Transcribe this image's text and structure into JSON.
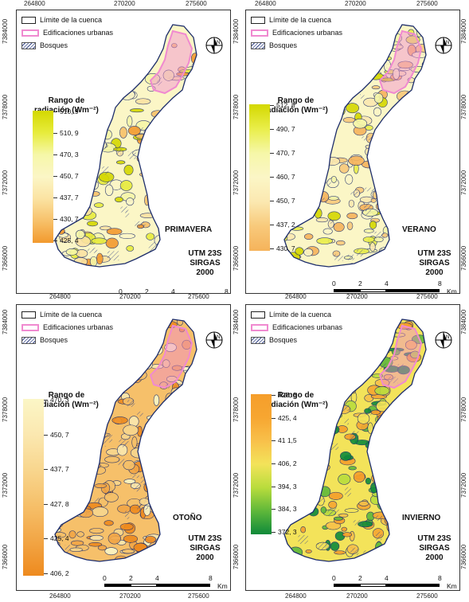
{
  "x_ticks": [
    "264800",
    "270200",
    "275600"
  ],
  "y_ticks": [
    "7384000",
    "7378000",
    "7372000",
    "7366000"
  ],
  "legend": {
    "basin": "Límite de la cuenca",
    "urban": "Edificaciones urbanas",
    "forest": "Bosques",
    "range_title_line1": "Rango de",
    "range_title_line2": "radiación (Wm⁻²)"
  },
  "utm_line1": "UTM 23S",
  "utm_line2": "SIRGAS 2000",
  "scale_labels": [
    "0",
    "2",
    "4",
    "8"
  ],
  "scale_unit": "Km",
  "north_label": "N",
  "panels": [
    {
      "season": "PRIMAVERA",
      "values": [
        "510, 9",
        "510, 9",
        "470, 3",
        "450, 7",
        "437, 7",
        "430, 7",
        "425, 4"
      ],
      "colors": [
        "#d4d800",
        "#e7ec3c",
        "#f6f7a8",
        "#fbf6c6",
        "#fbe3a2",
        "#f7c16a",
        "#f29a2e"
      ]
    },
    {
      "season": "VERANO",
      "values": [
        "512, 8",
        "490, 7",
        "470, 7",
        "460, 7",
        "450, 7",
        "437, 2",
        "430, 7"
      ],
      "colors": [
        "#d4d800",
        "#e9ee4a",
        "#f6f7a8",
        "#fbf6c6",
        "#fbe8b0",
        "#f8c97a",
        "#f5b35b"
      ]
    },
    {
      "season": "OTOÑO",
      "values": [
        "470, 3",
        "450, 7",
        "437, 7",
        "427, 8",
        "425, 4",
        "406, 2"
      ],
      "colors": [
        "#fbf6c6",
        "#fbe8b0",
        "#f8d68e",
        "#f6c06a",
        "#f2a646",
        "#ee8a1e"
      ]
    },
    {
      "season": "INVIERNO",
      "values": [
        "427, 8",
        "425, 4",
        "41 1,5",
        "406, 2",
        "394, 3",
        "384, 3",
        "372, 3"
      ],
      "colors": [
        "#f59e2b",
        "#f7a631",
        "#f8c04a",
        "#f3e35a",
        "#b9dc3c",
        "#5fb83a",
        "#0f8a3a"
      ]
    }
  ]
}
